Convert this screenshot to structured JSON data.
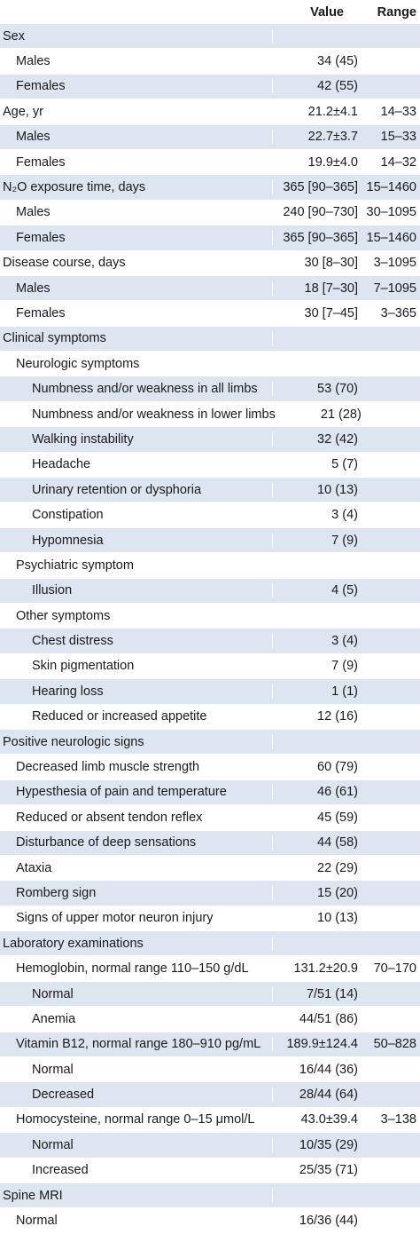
{
  "header": {
    "label": "",
    "value": "Value",
    "range": "Range"
  },
  "rows": [
    {
      "label": "Sex",
      "value": "",
      "range": "",
      "level": 0,
      "shade": true
    },
    {
      "label": "Males",
      "value": "34 (45)",
      "range": "",
      "level": 1,
      "shade": false
    },
    {
      "label": "Females",
      "value": "42 (55)",
      "range": "",
      "level": 1,
      "shade": true
    },
    {
      "label": "Age, yr",
      "value": "21.2±4.1",
      "range": "14–33",
      "level": 0,
      "shade": false
    },
    {
      "label": "Males",
      "value": "22.7±3.7",
      "range": "15–33",
      "level": 1,
      "shade": true
    },
    {
      "label": "Females",
      "value": "19.9±4.0",
      "range": "14–32",
      "level": 1,
      "shade": false
    },
    {
      "label": "N₂O exposure time, days",
      "value": "365 [90–365]",
      "range": "15–1460",
      "level": 0,
      "shade": true
    },
    {
      "label": "Males",
      "value": "240 [90–730]",
      "range": "30–1095",
      "level": 1,
      "shade": false
    },
    {
      "label": "Females",
      "value": "365 [90–365]",
      "range": "15–1460",
      "level": 1,
      "shade": true
    },
    {
      "label": "Disease course, days",
      "value": "30 [8–30]",
      "range": "3–1095",
      "level": 0,
      "shade": false
    },
    {
      "label": "Males",
      "value": "18 [7–30]",
      "range": "7–1095",
      "level": 1,
      "shade": true
    },
    {
      "label": "Females",
      "value": "30 [7–45]",
      "range": "3–365",
      "level": 1,
      "shade": false
    },
    {
      "label": "Clinical symptoms",
      "value": "",
      "range": "",
      "level": 0,
      "shade": true
    },
    {
      "label": "Neurologic symptoms",
      "value": "",
      "range": "",
      "level": 1,
      "shade": false
    },
    {
      "label": "Numbness and/or weakness in all limbs",
      "value": "53 (70)",
      "range": "",
      "level": 2,
      "shade": true
    },
    {
      "label": "Numbness and/or weakness in lower limbs",
      "value": "21 (28)",
      "range": "",
      "level": 2,
      "shade": false
    },
    {
      "label": "Walking instability",
      "value": "32 (42)",
      "range": "",
      "level": 2,
      "shade": true
    },
    {
      "label": "Headache",
      "value": "5 (7)",
      "range": "",
      "level": 2,
      "shade": false
    },
    {
      "label": "Urinary retention or dysphoria",
      "value": "10 (13)",
      "range": "",
      "level": 2,
      "shade": true
    },
    {
      "label": "Constipation",
      "value": "3 (4)",
      "range": "",
      "level": 2,
      "shade": false
    },
    {
      "label": "Hypomnesia",
      "value": "7 (9)",
      "range": "",
      "level": 2,
      "shade": true
    },
    {
      "label": "Psychiatric symptom",
      "value": "",
      "range": "",
      "level": 1,
      "shade": false
    },
    {
      "label": "Illusion",
      "value": "4 (5)",
      "range": "",
      "level": 2,
      "shade": true
    },
    {
      "label": "Other symptoms",
      "value": "",
      "range": "",
      "level": 1,
      "shade": false
    },
    {
      "label": "Chest distress",
      "value": "3 (4)",
      "range": "",
      "level": 2,
      "shade": true
    },
    {
      "label": "Skin pigmentation",
      "value": "7 (9)",
      "range": "",
      "level": 2,
      "shade": false
    },
    {
      "label": "Hearing loss",
      "value": "1 (1)",
      "range": "",
      "level": 2,
      "shade": true
    },
    {
      "label": "Reduced or increased appetite",
      "value": "12 (16)",
      "range": "",
      "level": 2,
      "shade": false
    },
    {
      "label": "Positive neurologic signs",
      "value": "",
      "range": "",
      "level": 0,
      "shade": true
    },
    {
      "label": "Decreased limb muscle strength",
      "value": "60 (79)",
      "range": "",
      "level": 1,
      "shade": false
    },
    {
      "label": "Hypesthesia of pain and temperature",
      "value": "46 (61)",
      "range": "",
      "level": 1,
      "shade": true
    },
    {
      "label": "Reduced or absent tendon reflex",
      "value": "45 (59)",
      "range": "",
      "level": 1,
      "shade": false
    },
    {
      "label": "Disturbance of deep sensations",
      "value": "44 (58)",
      "range": "",
      "level": 1,
      "shade": true
    },
    {
      "label": "Ataxia",
      "value": "22 (29)",
      "range": "",
      "level": 1,
      "shade": false
    },
    {
      "label": "Romberg sign",
      "value": "15 (20)",
      "range": "",
      "level": 1,
      "shade": true
    },
    {
      "label": "Signs of upper motor neuron injury",
      "value": "10 (13)",
      "range": "",
      "level": 1,
      "shade": false
    },
    {
      "label": "Laboratory examinations",
      "value": "",
      "range": "",
      "level": 0,
      "shade": true
    },
    {
      "label": "Hemoglobin, normal range 110–150 g/dL",
      "value": "131.2±20.9",
      "range": "70–170",
      "level": 1,
      "shade": false
    },
    {
      "label": "Normal",
      "value": "7/51 (14)",
      "range": "",
      "level": 2,
      "shade": true
    },
    {
      "label": "Anemia",
      "value": "44/51 (86)",
      "range": "",
      "level": 2,
      "shade": false
    },
    {
      "label": "Vitamin B12, normal range 180–910 pg/mL",
      "value": "189.9±124.4",
      "range": "50–828",
      "level": 1,
      "shade": true
    },
    {
      "label": "Normal",
      "value": "16/44 (36)",
      "range": "",
      "level": 2,
      "shade": false
    },
    {
      "label": "Decreased",
      "value": "28/44 (64)",
      "range": "",
      "level": 2,
      "shade": true
    },
    {
      "label": "Homocysteine, normal range 0–15 μmol/L",
      "value": "43.0±39.4",
      "range": "3–138",
      "level": 1,
      "shade": false
    },
    {
      "label": "Normal",
      "value": "10/35 (29)",
      "range": "",
      "level": 2,
      "shade": true
    },
    {
      "label": "Increased",
      "value": "25/35 (71)",
      "range": "",
      "level": 2,
      "shade": false
    },
    {
      "label": "Spine MRI",
      "value": "",
      "range": "",
      "level": 0,
      "shade": true
    },
    {
      "label": "Normal",
      "value": "16/36 (44)",
      "range": "",
      "level": 1,
      "shade": false
    }
  ]
}
